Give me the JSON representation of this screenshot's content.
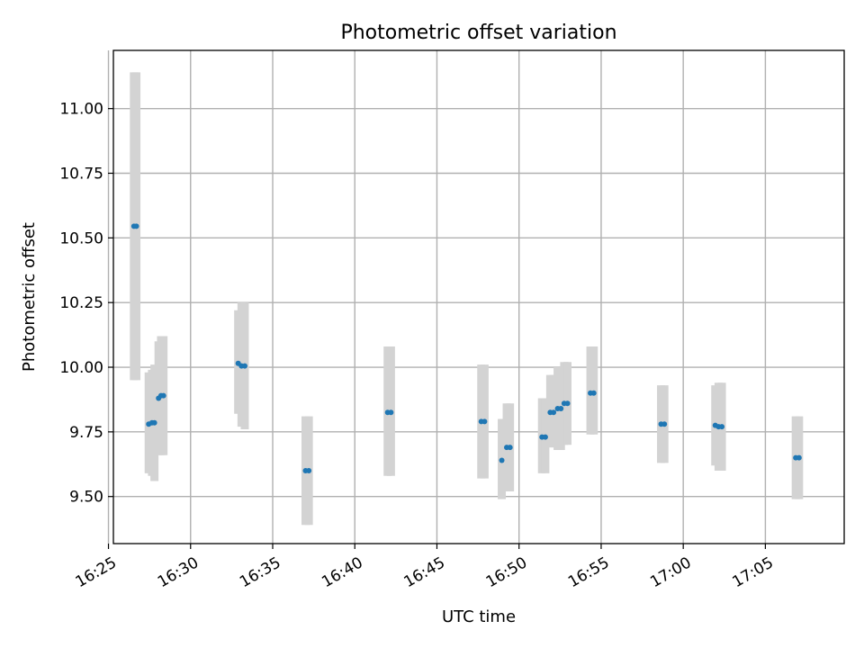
{
  "chart_data": {
    "type": "scatter",
    "title": "Photometric offset variation",
    "xlabel": "UTC time",
    "ylabel": "Photometric offset",
    "grid": true,
    "xlim_minutes": [
      985.3,
      1029.8
    ],
    "ylim": [
      9.318,
      11.225
    ],
    "xticks": [
      {
        "minutes": 985,
        "label": "16:25"
      },
      {
        "minutes": 990,
        "label": "16:30"
      },
      {
        "minutes": 995,
        "label": "16:35"
      },
      {
        "minutes": 1000,
        "label": "16:40"
      },
      {
        "minutes": 1005,
        "label": "16:45"
      },
      {
        "minutes": 1010,
        "label": "16:50"
      },
      {
        "minutes": 1015,
        "label": "16:55"
      },
      {
        "minutes": 1020,
        "label": "17:00"
      },
      {
        "minutes": 1025,
        "label": "17:05"
      }
    ],
    "yticks": [
      {
        "value": 9.5,
        "label": "9.50"
      },
      {
        "value": 9.75,
        "label": "9.75"
      },
      {
        "value": 10.0,
        "label": "10.00"
      },
      {
        "value": 10.25,
        "label": "10.25"
      },
      {
        "value": 10.5,
        "label": "10.50"
      },
      {
        "value": 10.75,
        "label": "10.75"
      },
      {
        "value": 11.0,
        "label": "11.00"
      }
    ],
    "error_bar_color": "#d3d3d3",
    "marker_color": "#1f77b4",
    "series": [
      {
        "name": "offset",
        "points": [
          {
            "x": 986.55,
            "y": 10.545,
            "lo": 9.95,
            "hi": 11.14
          },
          {
            "x": 986.7,
            "y": 10.545,
            "lo": 9.95,
            "hi": 11.14
          },
          {
            "x": 987.45,
            "y": 9.78,
            "lo": 9.59,
            "hi": 9.98
          },
          {
            "x": 987.65,
            "y": 9.785,
            "lo": 9.58,
            "hi": 9.99
          },
          {
            "x": 987.8,
            "y": 9.785,
            "lo": 9.56,
            "hi": 10.01
          },
          {
            "x": 988.05,
            "y": 9.88,
            "lo": 9.66,
            "hi": 10.1
          },
          {
            "x": 988.2,
            "y": 9.89,
            "lo": 9.66,
            "hi": 10.12
          },
          {
            "x": 988.35,
            "y": 9.89,
            "lo": 9.66,
            "hi": 10.12
          },
          {
            "x": 992.9,
            "y": 10.015,
            "lo": 9.82,
            "hi": 10.22
          },
          {
            "x": 993.1,
            "y": 10.005,
            "lo": 9.77,
            "hi": 10.25
          },
          {
            "x": 993.3,
            "y": 10.005,
            "lo": 9.76,
            "hi": 10.25
          },
          {
            "x": 997.0,
            "y": 9.6,
            "lo": 9.39,
            "hi": 9.81
          },
          {
            "x": 997.2,
            "y": 9.6,
            "lo": 9.39,
            "hi": 9.81
          },
          {
            "x": 1002.0,
            "y": 9.825,
            "lo": 9.58,
            "hi": 10.08
          },
          {
            "x": 1002.2,
            "y": 9.825,
            "lo": 9.58,
            "hi": 10.08
          },
          {
            "x": 1007.7,
            "y": 9.79,
            "lo": 9.57,
            "hi": 10.01
          },
          {
            "x": 1007.9,
            "y": 9.79,
            "lo": 9.57,
            "hi": 10.01
          },
          {
            "x": 1008.95,
            "y": 9.64,
            "lo": 9.49,
            "hi": 9.8
          },
          {
            "x": 1009.25,
            "y": 9.69,
            "lo": 9.52,
            "hi": 9.86
          },
          {
            "x": 1009.45,
            "y": 9.69,
            "lo": 9.52,
            "hi": 9.86
          },
          {
            "x": 1011.4,
            "y": 9.73,
            "lo": 9.59,
            "hi": 9.88
          },
          {
            "x": 1011.6,
            "y": 9.73,
            "lo": 9.59,
            "hi": 9.88
          },
          {
            "x": 1011.9,
            "y": 9.825,
            "lo": 9.69,
            "hi": 9.97
          },
          {
            "x": 1012.1,
            "y": 9.825,
            "lo": 9.69,
            "hi": 9.97
          },
          {
            "x": 1012.35,
            "y": 9.84,
            "lo": 9.68,
            "hi": 10.0
          },
          {
            "x": 1012.55,
            "y": 9.84,
            "lo": 9.68,
            "hi": 10.0
          },
          {
            "x": 1012.75,
            "y": 9.86,
            "lo": 9.7,
            "hi": 10.02
          },
          {
            "x": 1012.95,
            "y": 9.86,
            "lo": 9.7,
            "hi": 10.02
          },
          {
            "x": 1014.35,
            "y": 9.9,
            "lo": 9.74,
            "hi": 10.08
          },
          {
            "x": 1014.55,
            "y": 9.9,
            "lo": 9.74,
            "hi": 10.08
          },
          {
            "x": 1018.65,
            "y": 9.78,
            "lo": 9.63,
            "hi": 9.93
          },
          {
            "x": 1018.85,
            "y": 9.78,
            "lo": 9.63,
            "hi": 9.93
          },
          {
            "x": 1021.95,
            "y": 9.775,
            "lo": 9.62,
            "hi": 9.93
          },
          {
            "x": 1022.15,
            "y": 9.77,
            "lo": 9.6,
            "hi": 9.94
          },
          {
            "x": 1022.35,
            "y": 9.77,
            "lo": 9.6,
            "hi": 9.94
          },
          {
            "x": 1026.85,
            "y": 9.65,
            "lo": 9.49,
            "hi": 9.81
          },
          {
            "x": 1027.05,
            "y": 9.65,
            "lo": 9.49,
            "hi": 9.81
          }
        ]
      }
    ]
  }
}
